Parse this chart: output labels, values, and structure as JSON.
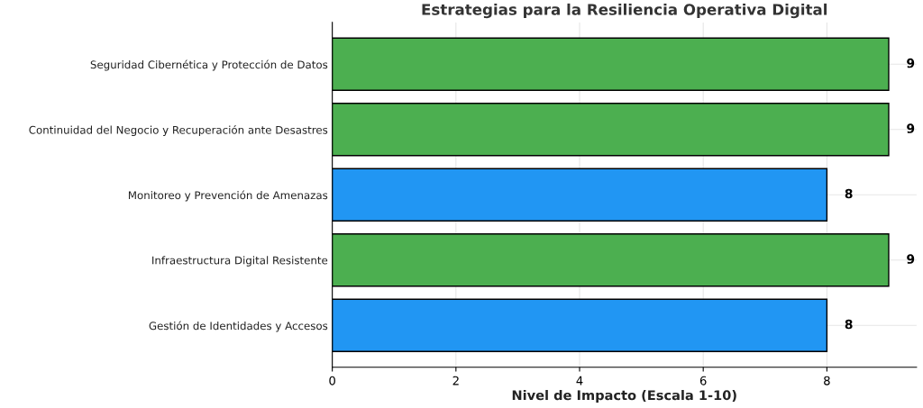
{
  "chart_data": {
    "type": "bar",
    "orientation": "horizontal",
    "title": "Estrategias para la Resiliencia Operativa Digital",
    "xlabel": "Nivel de Impacto (Escala 1-10)",
    "categories": [
      "Seguridad Cibernética y Protección de Datos",
      "Continuidad del Negocio y Recuperación ante Desastres",
      "Monitoreo y Prevención de Amenazas",
      "Infraestructura Digital Resistente",
      "Gestión de Identidades y Accesos"
    ],
    "values": [
      9,
      9,
      8,
      9,
      8
    ],
    "colors": [
      "#4caf50",
      "#4caf50",
      "#2196f3",
      "#4caf50",
      "#2196f3"
    ],
    "xlim": [
      0,
      9.45
    ],
    "xticks": [
      0,
      2,
      4,
      6,
      8
    ],
    "grid": true,
    "data_labels": true
  }
}
